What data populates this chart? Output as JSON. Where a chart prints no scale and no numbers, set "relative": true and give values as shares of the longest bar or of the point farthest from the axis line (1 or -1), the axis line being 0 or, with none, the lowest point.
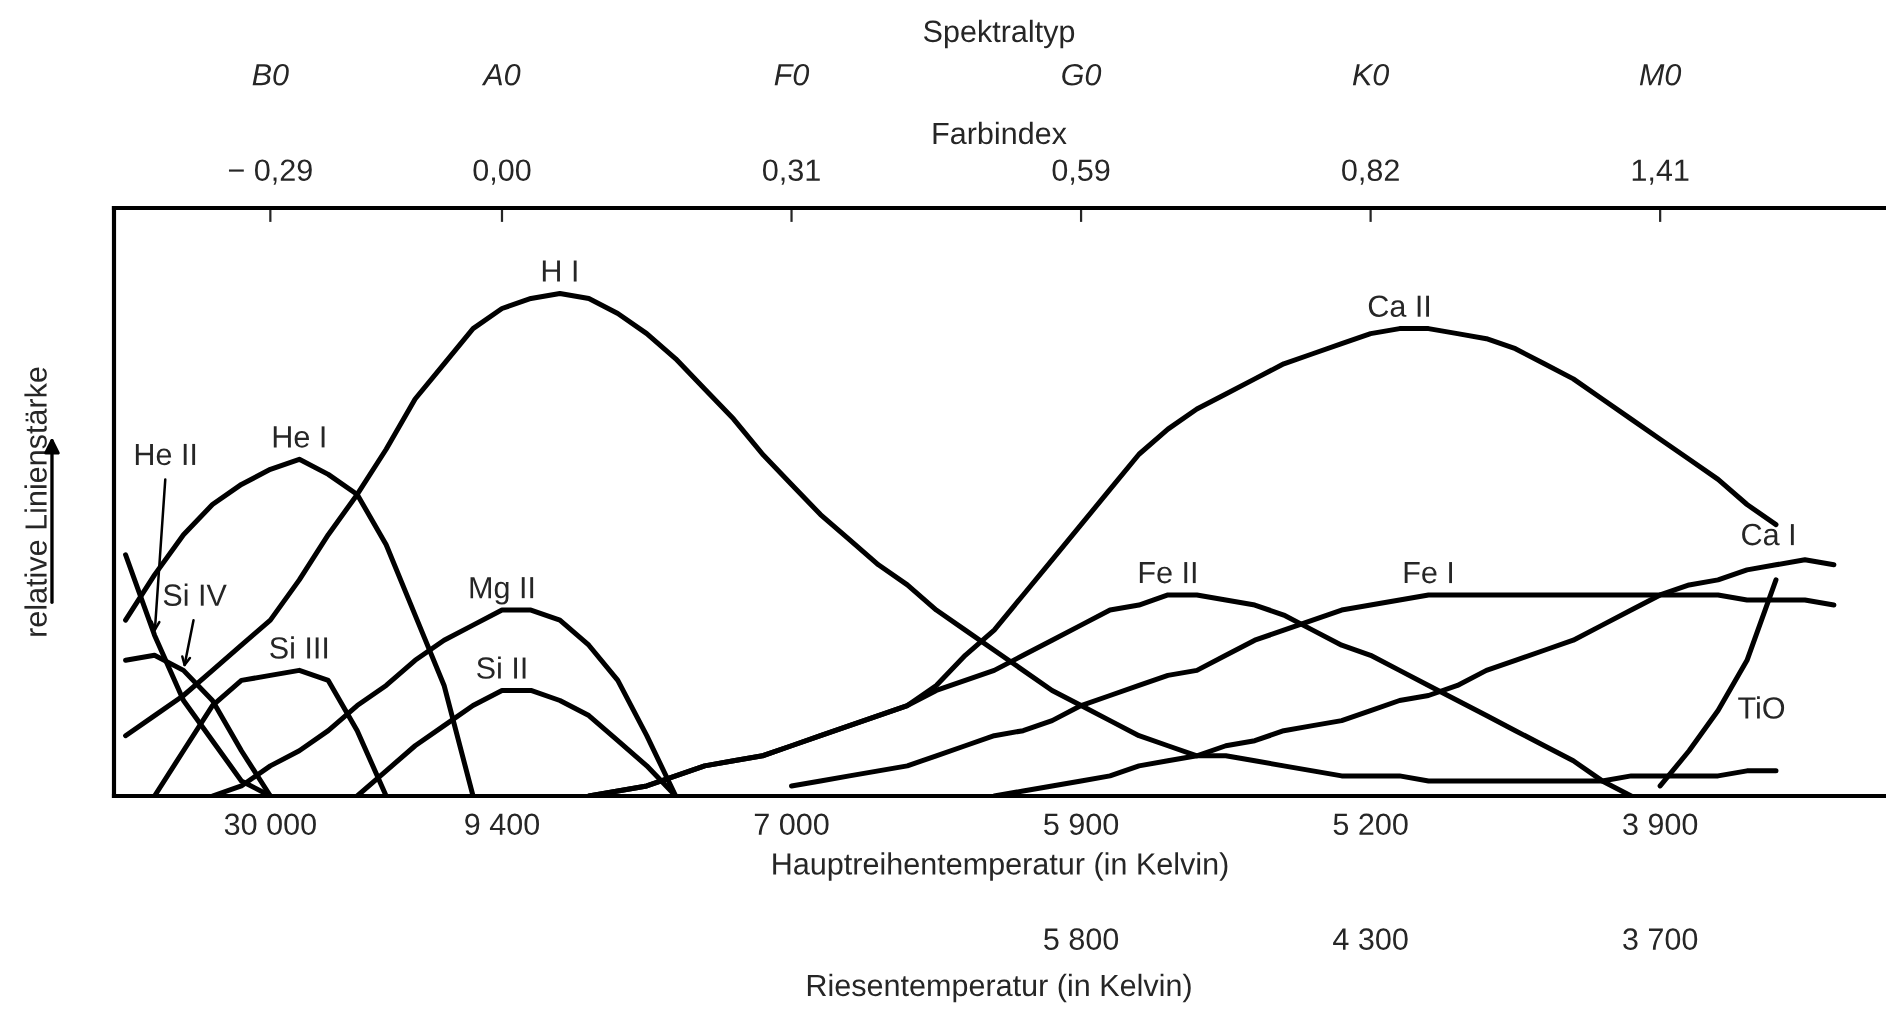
{
  "chart_data": {
    "type": "line",
    "relative": true,
    "title": "Spektraltyp",
    "xlabel": "Hauptreihentemperatur (in Kelvin)",
    "ylabel": "relative Linienstärke",
    "categories": [
      null,
      null,
      null,
      null,
      null,
      "30 000",
      null,
      null,
      null,
      null,
      null,
      null,
      null,
      "9 400",
      null,
      null,
      null,
      null,
      null,
      null,
      null,
      null,
      null,
      "7 000",
      null,
      null,
      null,
      null,
      null,
      null,
      null,
      null,
      null,
      "5 900",
      null,
      null,
      null,
      null,
      null,
      null,
      null,
      null,
      null,
      "5 200",
      null,
      null,
      null,
      null,
      null,
      null,
      null,
      null,
      null,
      "3 900",
      null,
      null,
      null,
      null,
      null,
      null,
      null
    ],
    "annotations": [
      "Farbindex",
      "Riesentemperatur (in Kelvin)",
      "B0",
      "A0",
      "F0",
      "G0",
      "K0",
      "M0",
      "− 0,29",
      "0,00",
      "0,31",
      "0,59",
      "0,82",
      "1,41",
      "5 800",
      "4 300",
      "3 700"
    ],
    "line_style": "solid",
    "series": [
      {
        "name": "He II",
        "color": "#000000",
        "values": [
          0.48,
          0.32,
          0.19,
          0.11,
          0.03,
          0,
          null,
          null,
          null,
          null,
          null,
          null,
          null,
          null,
          null,
          null,
          null,
          null,
          null,
          null,
          null,
          null,
          null,
          null,
          null,
          null,
          null,
          null,
          null,
          null,
          null,
          null,
          null,
          null,
          null,
          null,
          null,
          null,
          null,
          null,
          null,
          null,
          null,
          null,
          null,
          null,
          null,
          null,
          null,
          null,
          null,
          null,
          null,
          null,
          null,
          null,
          null,
          null,
          null,
          null,
          null
        ]
      },
      {
        "name": "He I",
        "color": "#000000",
        "values": [
          0.35,
          0.44,
          0.52,
          0.58,
          0.62,
          0.65,
          0.67,
          0.64,
          0.6,
          0.5,
          0.36,
          0.22,
          0,
          null,
          null,
          null,
          null,
          null,
          null,
          null,
          null,
          null,
          null,
          null,
          null,
          null,
          null,
          null,
          null,
          null,
          null,
          null,
          null,
          null,
          null,
          null,
          null,
          null,
          null,
          null,
          null,
          null,
          null,
          null,
          null,
          null,
          null,
          null,
          null,
          null,
          null,
          null,
          null,
          null,
          null,
          null,
          null,
          null,
          null,
          null,
          null
        ]
      },
      {
        "name": "H I",
        "color": "#000000",
        "values": [
          0.12,
          0.16,
          0.2,
          0.25,
          0.3,
          0.35,
          0.43,
          0.52,
          0.6,
          0.69,
          0.79,
          0.86,
          0.93,
          0.97,
          0.99,
          1.0,
          0.99,
          0.96,
          0.92,
          0.87,
          0.81,
          0.75,
          0.68,
          0.62,
          0.56,
          0.51,
          0.46,
          0.42,
          0.37,
          0.33,
          0.29,
          0.25,
          0.21,
          0.18,
          0.15,
          0.12,
          0.1,
          0.08,
          0.08,
          0.07,
          0.06,
          0.05,
          0.04,
          0.04,
          0.04,
          0.03,
          0.03,
          0.03,
          0.03,
          0.03,
          0.03,
          0.03,
          0.04,
          0.04,
          0.04,
          0.04,
          0.05,
          0.05,
          null,
          null,
          null
        ]
      },
      {
        "name": "Si IV",
        "color": "#000000",
        "values": [
          0.27,
          0.28,
          0.25,
          0.19,
          0.09,
          0,
          null,
          null,
          null,
          null,
          null,
          null,
          null,
          null,
          null,
          null,
          null,
          null,
          null,
          null,
          null,
          null,
          null,
          null,
          null,
          null,
          null,
          null,
          null,
          null,
          null,
          null,
          null,
          null,
          null,
          null,
          null,
          null,
          null,
          null,
          null,
          null,
          null,
          null,
          null,
          null,
          null,
          null,
          null,
          null,
          null,
          null,
          null,
          null,
          null,
          null,
          null,
          null,
          null,
          null,
          null
        ]
      },
      {
        "name": "Si III",
        "color": "#000000",
        "values": [
          null,
          0,
          0.09,
          0.18,
          0.23,
          0.24,
          0.25,
          0.23,
          0.13,
          0,
          null,
          null,
          null,
          null,
          null,
          null,
          null,
          null,
          null,
          null,
          null,
          null,
          null,
          null,
          null,
          null,
          null,
          null,
          null,
          null,
          null,
          null,
          null,
          null,
          null,
          null,
          null,
          null,
          null,
          null,
          null,
          null,
          null,
          null,
          null,
          null,
          null,
          null,
          null,
          null,
          null,
          null,
          null,
          null,
          null,
          null,
          null,
          null,
          null,
          null,
          null
        ]
      },
      {
        "name": "Mg II",
        "color": "#000000",
        "values": [
          null,
          null,
          null,
          0,
          0.02,
          0.06,
          0.09,
          0.13,
          0.18,
          0.22,
          0.27,
          0.31,
          0.34,
          0.37,
          0.37,
          0.35,
          0.3,
          0.23,
          0.12,
          0,
          null,
          null,
          null,
          null,
          null,
          null,
          null,
          null,
          null,
          null,
          null,
          null,
          null,
          null,
          null,
          null,
          null,
          null,
          null,
          null,
          null,
          null,
          null,
          null,
          null,
          null,
          null,
          null,
          null,
          null,
          null,
          null,
          null,
          null,
          null,
          null,
          null,
          null,
          null,
          null,
          null
        ]
      },
      {
        "name": "Si II",
        "color": "#000000",
        "values": [
          null,
          null,
          null,
          null,
          null,
          null,
          null,
          null,
          0,
          0.05,
          0.1,
          0.14,
          0.18,
          0.21,
          0.21,
          0.19,
          0.16,
          0.11,
          0.06,
          0,
          null,
          null,
          null,
          null,
          null,
          null,
          null,
          null,
          null,
          null,
          null,
          null,
          null,
          null,
          null,
          null,
          null,
          null,
          null,
          null,
          null,
          null,
          null,
          null,
          null,
          null,
          null,
          null,
          null,
          null,
          null,
          null,
          null,
          null,
          null,
          null,
          null,
          null,
          null,
          null,
          null
        ]
      },
      {
        "name": "Ca II",
        "color": "#000000",
        "values": [
          null,
          null,
          null,
          null,
          null,
          null,
          null,
          null,
          null,
          null,
          null,
          null,
          null,
          null,
          null,
          null,
          0,
          0.01,
          0.02,
          0.04,
          0.06,
          0.07,
          0.08,
          0.1,
          0.12,
          0.14,
          0.16,
          0.18,
          0.22,
          0.28,
          0.33,
          0.4,
          0.47,
          0.54,
          0.61,
          0.68,
          0.73,
          0.77,
          0.8,
          0.83,
          0.86,
          0.88,
          0.9,
          0.92,
          0.93,
          0.93,
          0.92,
          0.91,
          0.89,
          0.86,
          0.83,
          0.79,
          0.75,
          0.71,
          0.67,
          0.63,
          0.58,
          0.54,
          null,
          null,
          null
        ]
      },
      {
        "name": "Fe II",
        "color": "#000000",
        "values": [
          null,
          null,
          null,
          null,
          null,
          null,
          null,
          null,
          null,
          null,
          null,
          null,
          null,
          null,
          null,
          null,
          0,
          0.01,
          0.02,
          0.04,
          0.06,
          0.07,
          0.08,
          0.1,
          0.12,
          0.14,
          0.16,
          0.18,
          0.21,
          0.23,
          0.25,
          0.28,
          0.31,
          0.34,
          0.37,
          0.38,
          0.4,
          0.4,
          0.39,
          0.38,
          0.36,
          0.33,
          0.3,
          0.28,
          0.25,
          0.22,
          0.19,
          0.16,
          0.13,
          0.1,
          0.07,
          0.03,
          0,
          null,
          null,
          null,
          null,
          null,
          null,
          null,
          null
        ]
      },
      {
        "name": "Fe I",
        "color": "#000000",
        "values": [
          null,
          null,
          null,
          null,
          null,
          null,
          null,
          null,
          null,
          null,
          null,
          null,
          null,
          null,
          null,
          null,
          null,
          null,
          null,
          null,
          null,
          null,
          null,
          0.02,
          0.03,
          0.04,
          0.05,
          0.06,
          0.08,
          0.1,
          0.12,
          0.13,
          0.15,
          0.18,
          0.2,
          0.22,
          0.24,
          0.25,
          0.28,
          0.31,
          0.33,
          0.35,
          0.37,
          0.38,
          0.39,
          0.4,
          0.4,
          0.4,
          0.4,
          0.4,
          0.4,
          0.4,
          0.4,
          0.4,
          0.4,
          0.4,
          0.39,
          0.39,
          0.39,
          0.38,
          null
        ]
      },
      {
        "name": "Ca I",
        "color": "#000000",
        "values": [
          null,
          null,
          null,
          null,
          null,
          null,
          null,
          null,
          null,
          null,
          null,
          null,
          null,
          null,
          null,
          null,
          null,
          null,
          null,
          null,
          null,
          null,
          null,
          null,
          null,
          null,
          null,
          null,
          null,
          null,
          0,
          0.01,
          0.02,
          0.03,
          0.04,
          0.06,
          0.07,
          0.08,
          0.1,
          0.11,
          0.13,
          0.14,
          0.15,
          0.17,
          0.19,
          0.2,
          0.22,
          0.25,
          0.27,
          0.29,
          0.31,
          0.34,
          0.37,
          0.4,
          0.42,
          0.43,
          0.45,
          0.46,
          0.47,
          0.46,
          null
        ]
      },
      {
        "name": "TiO",
        "color": "#000000",
        "values": [
          null,
          null,
          null,
          null,
          null,
          null,
          null,
          null,
          null,
          null,
          null,
          null,
          null,
          null,
          null,
          null,
          null,
          null,
          null,
          null,
          null,
          null,
          null,
          null,
          null,
          null,
          null,
          null,
          null,
          null,
          null,
          null,
          null,
          null,
          null,
          null,
          null,
          null,
          null,
          null,
          null,
          null,
          null,
          null,
          null,
          null,
          null,
          null,
          null,
          null,
          null,
          null,
          null,
          0.02,
          0.09,
          0.17,
          0.27,
          0.43,
          null,
          null,
          null
        ]
      }
    ]
  }
}
